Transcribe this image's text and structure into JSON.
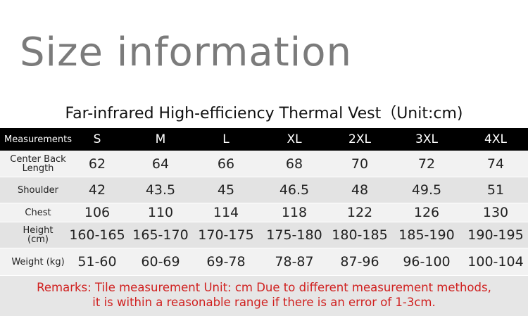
{
  "header": {
    "title": "Size information",
    "subtitle": "Far-infrared High-efficiency Thermal Vest（Unit:cm)"
  },
  "table": {
    "columns": [
      "Measurements",
      "S",
      "M",
      "L",
      "XL",
      "2XL",
      "3XL",
      "4XL"
    ],
    "rows": [
      {
        "label": [
          "Center Back",
          "Length"
        ],
        "cells": [
          "62",
          "64",
          "66",
          "68",
          "70",
          "72",
          "74"
        ]
      },
      {
        "label": [
          "Shoulder"
        ],
        "cells": [
          "42",
          "43.5",
          "45",
          "46.5",
          "48",
          "49.5",
          "51"
        ]
      },
      {
        "label": [
          "Chest"
        ],
        "cells": [
          "106",
          "110",
          "114",
          "118",
          "122",
          "126",
          "130"
        ]
      },
      {
        "label": [
          "Height",
          "(cm)"
        ],
        "cells": [
          "160-165",
          "165-170",
          "170-175",
          "175-180",
          "180-185",
          "185-190",
          "190-195"
        ]
      },
      {
        "label": [
          "Weight (kg)"
        ],
        "cells": [
          "51-60",
          "60-69",
          "69-78",
          "78-87",
          "87-96",
          "96-100",
          "100-104"
        ]
      }
    ]
  },
  "remarks": [
    "Remarks: Tile measurement Unit: cm Due to different measurement methods,",
    "it is within a reasonable range if there is an error of 1-3cm."
  ]
}
